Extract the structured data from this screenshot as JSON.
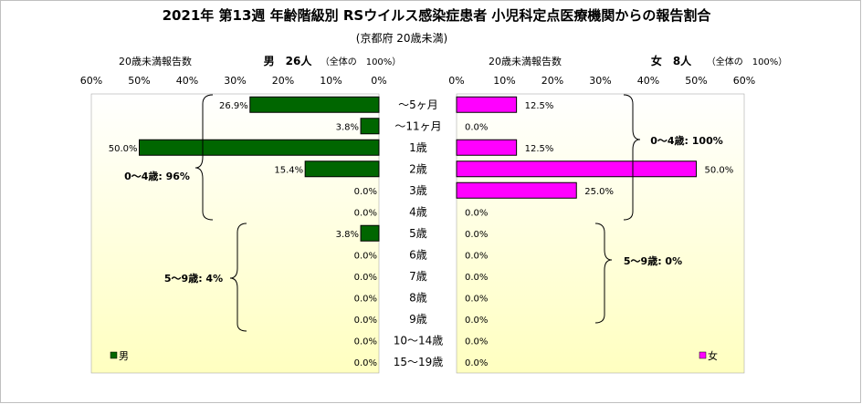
{
  "title": "2021年 第13週 年齢階級別 RSウイルス感染症患者 小児科定点医療機関からの報告割合",
  "subtitle": "(京都府 20歳未満)",
  "colors": {
    "male": "#006600",
    "female": "#ff00ff",
    "plot_top": "#ffffff",
    "plot_bottom": "#ffffc0"
  },
  "chart_data": [
    {
      "type": "bar",
      "orientation": "horizontal",
      "side": "left",
      "axis_label": "20歳未満報告数",
      "header": "男　26人",
      "total_note": "（全体の　100%）",
      "xlim": [
        0,
        60
      ],
      "ticks": [
        "60%",
        "50%",
        "40%",
        "30%",
        "20%",
        "10%",
        "0%"
      ],
      "categories": [
        "～5ヶ月",
        "～11ヶ月",
        "1歳",
        "2歳",
        "3歳",
        "4歳",
        "5歳",
        "6歳",
        "7歳",
        "8歳",
        "9歳",
        "10～14歳",
        "15～19歳"
      ],
      "values": [
        26.9,
        3.8,
        50.0,
        15.4,
        0.0,
        0.0,
        3.8,
        0.0,
        0.0,
        0.0,
        0.0,
        0.0,
        0.0
      ],
      "labels": [
        "26.9%",
        "3.8%",
        "50.0%",
        "15.4%",
        "0.0%",
        "0.0%",
        "3.8%",
        "0.0%",
        "0.0%",
        "0.0%",
        "0.0%",
        "0.0%",
        "0.0%"
      ],
      "annotations": [
        "0～4歳: 96%",
        "5～9歳: 4%"
      ],
      "legend": "男"
    },
    {
      "type": "bar",
      "orientation": "horizontal",
      "side": "right",
      "axis_label": "20歳未満報告数",
      "header": "女　8人",
      "total_note": "（全体の　100%）",
      "xlim": [
        0,
        60
      ],
      "ticks": [
        "0%",
        "10%",
        "20%",
        "30%",
        "40%",
        "50%",
        "60%"
      ],
      "categories": [
        "～5ヶ月",
        "～11ヶ月",
        "1歳",
        "2歳",
        "3歳",
        "4歳",
        "5歳",
        "6歳",
        "7歳",
        "8歳",
        "9歳",
        "10～14歳",
        "15～19歳"
      ],
      "values": [
        12.5,
        0.0,
        12.5,
        50.0,
        25.0,
        0.0,
        0.0,
        0.0,
        0.0,
        0.0,
        0.0,
        0.0,
        0.0
      ],
      "labels": [
        "12.5%",
        "0.0%",
        "12.5%",
        "50.0%",
        "25.0%",
        "0.0%",
        "0.0%",
        "0.0%",
        "0.0%",
        "0.0%",
        "0.0%",
        "0.0%",
        "0.0%"
      ],
      "annotations": [
        "0～4歳: 100%",
        "5～9歳: 0%"
      ],
      "legend": "女"
    }
  ]
}
